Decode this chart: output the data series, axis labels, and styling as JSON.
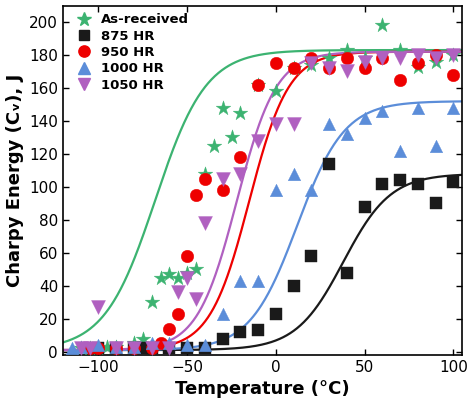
{
  "title": "",
  "xlabel": "Temperature (°C)",
  "ylabel": "Charpy Energy (Cᵥ), J",
  "xlim": [
    -120,
    105
  ],
  "ylim": [
    -2,
    210
  ],
  "xticks": [
    -100,
    -50,
    0,
    50,
    100
  ],
  "yticks": [
    0,
    20,
    40,
    60,
    80,
    100,
    120,
    140,
    160,
    180,
    200
  ],
  "series": {
    "As-received": {
      "color": "#3cb371",
      "marker": "*",
      "markersize": 11,
      "T0": -68,
      "upper": 183,
      "lower": 1,
      "k": 0.07,
      "scatter_x": [
        -110,
        -105,
        -100,
        -95,
        -90,
        -80,
        -75,
        -70,
        -65,
        -60,
        -55,
        -50,
        -45,
        -40,
        -35,
        -30,
        -25,
        -20,
        -10,
        0,
        10,
        20,
        30,
        40,
        50,
        60,
        70,
        80,
        90,
        100
      ],
      "scatter_y": [
        2,
        2,
        2,
        3,
        3,
        5,
        8,
        30,
        45,
        47,
        45,
        48,
        50,
        108,
        125,
        148,
        130,
        145,
        162,
        158,
        172,
        174,
        178,
        183,
        178,
        198,
        183,
        173,
        176,
        180
      ]
    },
    "875 HR": {
      "color": "#1a1a1a",
      "marker": "s",
      "markersize": 8,
      "T0": 38,
      "upper": 108,
      "lower": 1,
      "k": 0.075,
      "scatter_x": [
        -100,
        -90,
        -80,
        -75,
        -70,
        -60,
        -50,
        -40,
        -30,
        -20,
        -10,
        0,
        10,
        20,
        30,
        40,
        50,
        60,
        70,
        80,
        90,
        100
      ],
      "scatter_y": [
        2,
        2,
        2,
        2,
        2,
        2,
        2,
        2,
        8,
        12,
        13,
        23,
        40,
        58,
        114,
        48,
        88,
        102,
        104,
        102,
        90,
        103
      ]
    },
    "950 HR": {
      "color": "#ee0000",
      "marker": "o",
      "markersize": 9,
      "T0": -15,
      "upper": 182,
      "lower": 1,
      "k": 0.09,
      "scatter_x": [
        -105,
        -100,
        -90,
        -80,
        -70,
        -65,
        -60,
        -55,
        -50,
        -45,
        -40,
        -30,
        -20,
        -10,
        0,
        10,
        20,
        30,
        40,
        50,
        60,
        70,
        80,
        90,
        100
      ],
      "scatter_y": [
        2,
        2,
        2,
        2,
        2,
        5,
        14,
        23,
        58,
        95,
        105,
        98,
        118,
        162,
        175,
        172,
        178,
        172,
        178,
        172,
        178,
        165,
        175,
        180,
        168
      ]
    },
    "1000 HR": {
      "color": "#5b8dd9",
      "marker": "^",
      "markersize": 9,
      "T0": 12,
      "upper": 152,
      "lower": 1,
      "k": 0.075,
      "scatter_x": [
        -115,
        -110,
        -100,
        -90,
        -80,
        -70,
        -60,
        -50,
        -40,
        -30,
        -20,
        -10,
        0,
        10,
        20,
        30,
        40,
        50,
        60,
        70,
        80,
        90,
        100
      ],
      "scatter_y": [
        2,
        3,
        4,
        3,
        3,
        5,
        5,
        4,
        4,
        23,
        43,
        43,
        98,
        108,
        98,
        138,
        132,
        142,
        146,
        122,
        148,
        125,
        148
      ]
    },
    "1050 HR": {
      "color": "#b060c0",
      "marker": "v",
      "markersize": 10,
      "T0": -22,
      "upper": 182,
      "lower": 1,
      "k": 0.09,
      "scatter_x": [
        -110,
        -105,
        -100,
        -90,
        -80,
        -70,
        -60,
        -55,
        -50,
        -45,
        -40,
        -30,
        -20,
        -10,
        0,
        10,
        20,
        30,
        40,
        50,
        60,
        70,
        80,
        90,
        100
      ],
      "scatter_y": [
        2,
        2,
        27,
        2,
        2,
        2,
        2,
        36,
        45,
        32,
        78,
        105,
        108,
        128,
        138,
        138,
        175,
        172,
        170,
        176,
        178,
        178,
        180,
        178,
        180
      ]
    }
  },
  "legend_fontsize": 9.5,
  "axis_label_fontsize": 13,
  "tick_fontsize": 11,
  "background_color": "#ffffff"
}
